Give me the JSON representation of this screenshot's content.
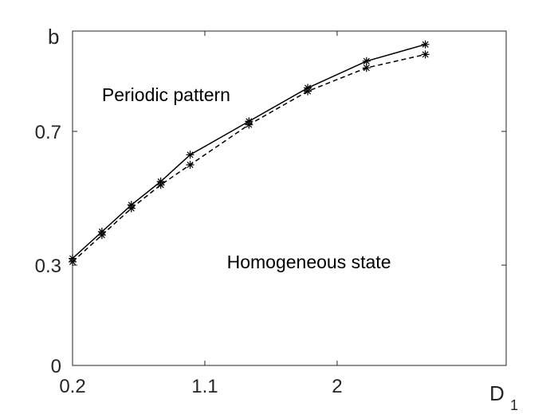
{
  "chart_data": {
    "type": "line",
    "xlabel": "D",
    "xlabel_subscript": "1",
    "ylabel": "b",
    "xlim": [
      0.2,
      3.15
    ],
    "ylim": [
      0,
      1.0
    ],
    "x_ticks": [
      0.2,
      1.1,
      2
    ],
    "x_tick_labels": [
      "0.2",
      "1.1",
      "2"
    ],
    "y_ticks": [
      0,
      0.3,
      0.7
    ],
    "y_tick_labels": [
      "0",
      "0.3",
      "0.7"
    ],
    "grid": false,
    "series": [
      {
        "style": "solid",
        "marker": "asterisk",
        "x": [
          0.2,
          0.4,
          0.6,
          0.8,
          1.0,
          1.4,
          1.8,
          2.2,
          2.6
        ],
        "y": [
          0.32,
          0.4,
          0.48,
          0.55,
          0.63,
          0.73,
          0.83,
          0.91,
          0.96
        ]
      },
      {
        "style": "dashed",
        "marker": "asterisk",
        "x": [
          0.2,
          0.4,
          0.6,
          0.8,
          1.0,
          1.4,
          1.8,
          2.2,
          2.6
        ],
        "y": [
          0.31,
          0.39,
          0.47,
          0.54,
          0.6,
          0.72,
          0.82,
          0.89,
          0.93
        ]
      }
    ],
    "annotations": [
      {
        "text": "Periodic pattern",
        "x": 0.4,
        "y": 0.79
      },
      {
        "text": "Homogeneous state",
        "x": 1.25,
        "y": 0.29
      }
    ],
    "colors": {
      "axis": "#262626",
      "line": "#000000",
      "background": "#ffffff"
    }
  }
}
